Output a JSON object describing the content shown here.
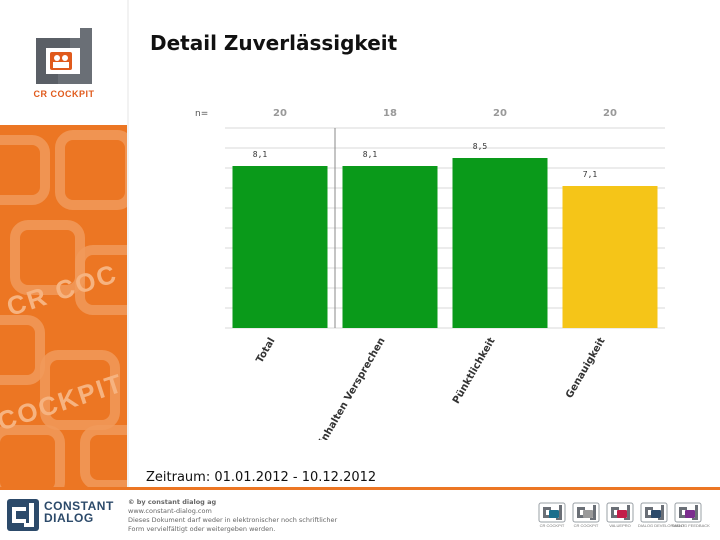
{
  "page": {
    "title": "Detail Zuverlässigkeit",
    "period": "Zeitraum: 01.01.2012 - 10.12.2012"
  },
  "brand": {
    "logo_caption": "CR COCKPIT",
    "orange": "#ec7623",
    "dark": "#2c4a6a"
  },
  "chart_data": {
    "type": "bar",
    "title": "Detail Zuverlässigkeit",
    "n_label": "n=",
    "categories": [
      "Total",
      "Einhalten Versprechen",
      "Pünktlichkeit",
      "Genauigkeit"
    ],
    "values": [
      8.1,
      8.1,
      8.5,
      7.1
    ],
    "value_labels": [
      "8,1",
      "8,1",
      "8,5",
      "7,1"
    ],
    "n_values": [
      "20",
      "18",
      "20",
      "20"
    ],
    "colors": [
      "#0a9a1a",
      "#0a9a1a",
      "#0a9a1a",
      "#f5c518"
    ],
    "ylim": [
      0,
      10
    ],
    "grid": true,
    "xlabel": "",
    "ylabel": ""
  },
  "footer": {
    "brand_line1": "CONSTANT",
    "brand_line2": "DIALOG",
    "lines": [
      "© by constant dialog ag",
      "www.constant-dialog.com",
      "Dieses Dokument darf weder in elektronischer noch schriftlicher",
      "Form vervielfältigt oder weitergeben werden."
    ],
    "product_icons": [
      {
        "name": "cr-cockpit",
        "color": "#1a6e8c",
        "caption": "CR COCKPIT"
      },
      {
        "name": "cr-cockpit-grey",
        "color": "#9a9a9a",
        "caption": "CR COCKPIT"
      },
      {
        "name": "valuepro",
        "color": "#c21e4a",
        "caption": "VALUEPRO"
      },
      {
        "name": "dialog-development",
        "color": "#2c4a6a",
        "caption": "DIALOG DEVELOPMENT"
      },
      {
        "name": "dialog-feedback",
        "color": "#7b2d8e",
        "caption": "DIALOG FEEDBACK"
      }
    ]
  }
}
